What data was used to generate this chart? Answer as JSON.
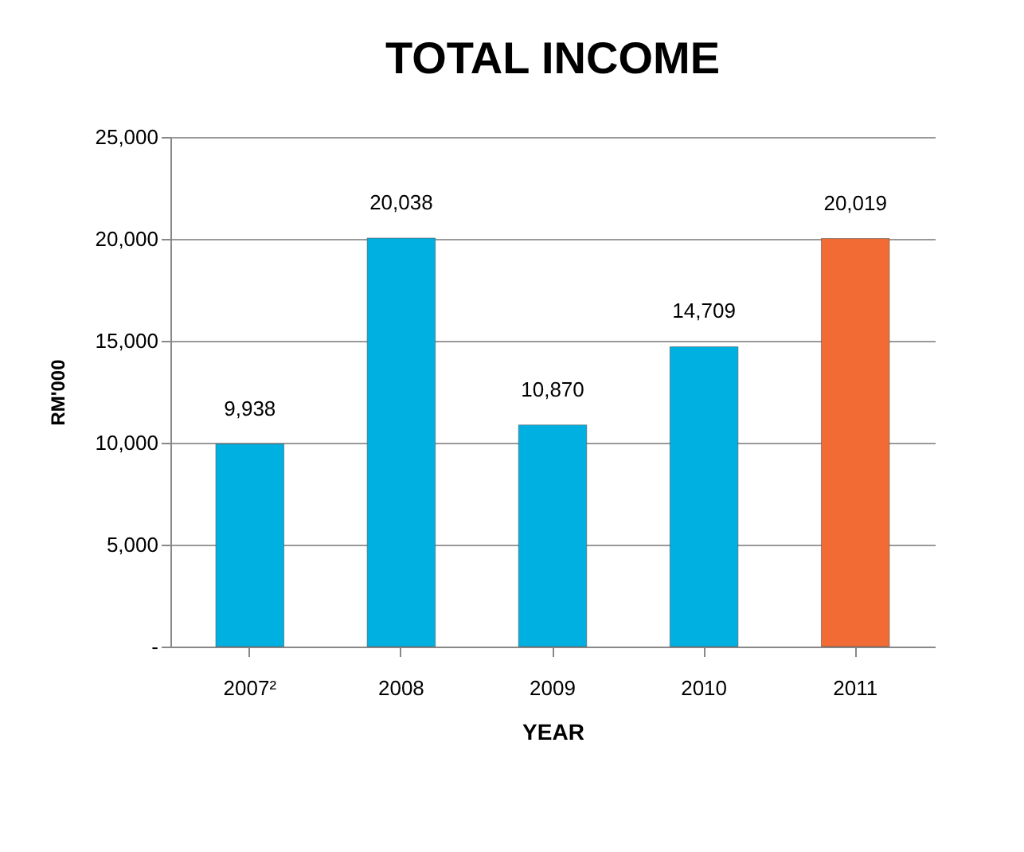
{
  "chart_data": {
    "type": "bar",
    "title": "TOTAL INCOME",
    "xlabel": "YEAR",
    "ylabel": "RM'000",
    "categories": [
      "2007²",
      "2008",
      "2009",
      "2010",
      "2011"
    ],
    "values": [
      9938,
      20038,
      10870,
      14709,
      20019
    ],
    "colors": [
      "#00b0e0",
      "#00b0e0",
      "#00b0e0",
      "#00b0e0",
      "#f26b35"
    ],
    "ylim": [
      0,
      25000
    ],
    "yticks": [
      {
        "value": 0,
        "label": "-"
      },
      {
        "value": 5000,
        "label": "5,000"
      },
      {
        "value": 10000,
        "label": "10,000"
      },
      {
        "value": 15000,
        "label": "15,000"
      },
      {
        "value": 20000,
        "label": "20,000"
      },
      {
        "value": 25000,
        "label": "25,000"
      }
    ],
    "value_labels": [
      "9,938",
      "20,038",
      "10,870",
      "14,709",
      "20,019"
    ],
    "grid": "y"
  }
}
